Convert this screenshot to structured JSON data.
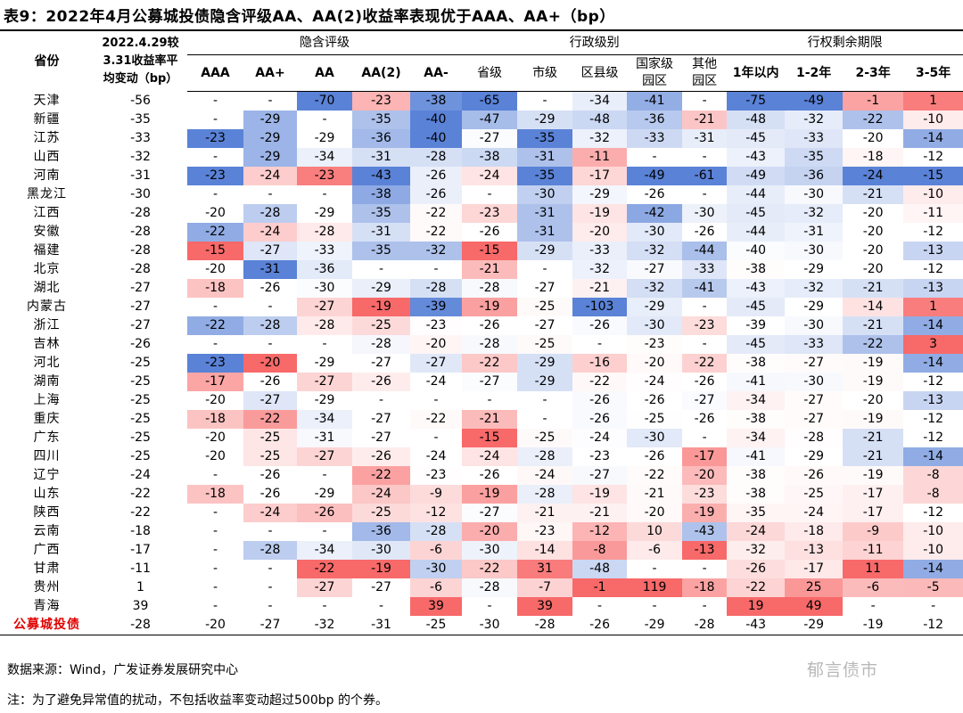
{
  "title": "表9：2022年4月公募城投债隐含评级AA、AA(2)收益率表现优于AAA、AA+（bp）",
  "header": {
    "province": "省份",
    "change": "2022.4.29较\n3.31收益率平\n均变动（bp）",
    "groups": [
      {
        "label": "隐含评级",
        "span": 5
      },
      {
        "label": "行政级别",
        "span": 5
      },
      {
        "label": "行权剩余期限",
        "span": 4
      }
    ],
    "columns": [
      "AAA",
      "AA+",
      "AA",
      "AA(2)",
      "AA-",
      "省级",
      "市级",
      "区县级",
      "国家级园区",
      "其他园区",
      "1年以内",
      "1-2年",
      "2-3年",
      "3-5年"
    ]
  },
  "rows": [
    {
      "name": "天津",
      "values": [
        -56,
        "-",
        "-",
        -70,
        -23,
        -38,
        -65,
        "-",
        -34,
        -41,
        "-",
        -75,
        -49,
        -1,
        1
      ]
    },
    {
      "name": "新疆",
      "values": [
        -35,
        "-",
        -29,
        "-",
        -35,
        -40,
        -47,
        -29,
        -48,
        -36,
        -21,
        -48,
        -32,
        -22,
        -10
      ]
    },
    {
      "name": "江苏",
      "values": [
        -33,
        -23,
        -29,
        -29,
        -36,
        -40,
        -27,
        -35,
        -32,
        -33,
        -31,
        -45,
        -33,
        -20,
        -14
      ]
    },
    {
      "name": "山西",
      "values": [
        -32,
        "-",
        -29,
        -34,
        -31,
        -28,
        -38,
        -31,
        -11,
        "-",
        "-",
        -43,
        -35,
        -18,
        -12
      ]
    },
    {
      "name": "河南",
      "values": [
        -31,
        -23,
        -24,
        -23,
        -43,
        -26,
        -24,
        -35,
        -17,
        -49,
        -61,
        -49,
        -36,
        -24,
        -15
      ]
    },
    {
      "name": "黑龙江",
      "values": [
        -30,
        "-",
        "-",
        "-",
        -38,
        -26,
        "-",
        -30,
        -29,
        -26,
        "-",
        -44,
        -30,
        -21,
        -10
      ]
    },
    {
      "name": "江西",
      "values": [
        -28,
        -20,
        -28,
        -29,
        -35,
        -22,
        -23,
        -31,
        -19,
        -42,
        -30,
        -45,
        -32,
        -20,
        -11
      ]
    },
    {
      "name": "安徽",
      "values": [
        -28,
        -22,
        -24,
        -28,
        -31,
        -22,
        -26,
        -31,
        -20,
        -30,
        -26,
        -44,
        -31,
        -20,
        -12
      ]
    },
    {
      "name": "福建",
      "values": [
        -28,
        -15,
        -27,
        -33,
        -35,
        -32,
        -15,
        -29,
        -33,
        -32,
        -44,
        -40,
        -30,
        -20,
        -13
      ]
    },
    {
      "name": "北京",
      "values": [
        -28,
        -20,
        -31,
        -36,
        "-",
        "-",
        -21,
        "-",
        -32,
        -27,
        -33,
        -38,
        -29,
        -20,
        -12
      ]
    },
    {
      "name": "湖北",
      "values": [
        -27,
        -18,
        -26,
        -30,
        -29,
        -28,
        -28,
        -27,
        -21,
        -32,
        -41,
        -43,
        -32,
        -21,
        -13
      ]
    },
    {
      "name": "内蒙古",
      "values": [
        -27,
        "-",
        "-",
        -27,
        -19,
        -39,
        -19,
        -25,
        -103,
        -29,
        "-",
        -45,
        -29,
        -14,
        1
      ]
    },
    {
      "name": "浙江",
      "values": [
        -27,
        -22,
        -28,
        -28,
        -25,
        -23,
        -26,
        -27,
        -26,
        -30,
        -23,
        -39,
        -30,
        -21,
        -14
      ]
    },
    {
      "name": "吉林",
      "values": [
        -26,
        "-",
        "-",
        "-",
        -28,
        -20,
        -28,
        -25,
        "-",
        -23,
        "-",
        -45,
        -33,
        -22,
        3
      ]
    },
    {
      "name": "河北",
      "values": [
        -25,
        -23,
        -20,
        -29,
        -27,
        -27,
        -22,
        -29,
        -16,
        -20,
        -22,
        -38,
        -27,
        -19,
        -14
      ]
    },
    {
      "name": "湖南",
      "values": [
        -25,
        -17,
        -26,
        -27,
        -26,
        -24,
        -27,
        -29,
        -22,
        -24,
        -26,
        -41,
        -30,
        -19,
        -12
      ]
    },
    {
      "name": "上海",
      "values": [
        -25,
        -20,
        -27,
        -29,
        "-",
        "-",
        "-",
        "-",
        -26,
        -26,
        -27,
        -34,
        -27,
        -20,
        -13
      ]
    },
    {
      "name": "重庆",
      "values": [
        -25,
        -18,
        -22,
        -34,
        -27,
        -22,
        -21,
        "-",
        -26,
        -25,
        -26,
        -38,
        -27,
        -19,
        -12
      ]
    },
    {
      "name": "广东",
      "values": [
        -25,
        -20,
        -25,
        -31,
        -27,
        "-",
        -15,
        -25,
        -24,
        -30,
        "-",
        -34,
        -28,
        -21,
        -12
      ]
    },
    {
      "name": "四川",
      "values": [
        -25,
        -20,
        -25,
        -27,
        -26,
        -24,
        -24,
        -28,
        -23,
        -26,
        -17,
        -41,
        -29,
        -21,
        -14
      ]
    },
    {
      "name": "辽宁",
      "values": [
        -24,
        "-",
        -26,
        "-",
        -22,
        -23,
        -26,
        -24,
        -27,
        -22,
        -20,
        -38,
        -26,
        -19,
        -8
      ]
    },
    {
      "name": "山东",
      "values": [
        -22,
        -18,
        -26,
        -29,
        -24,
        -9,
        -19,
        -28,
        -19,
        -21,
        -23,
        -38,
        -25,
        -17,
        -8
      ]
    },
    {
      "name": "陕西",
      "values": [
        -22,
        "-",
        -24,
        -26,
        -25,
        -12,
        -27,
        -21,
        -21,
        -20,
        -19,
        -35,
        -24,
        -17,
        -12
      ]
    },
    {
      "name": "云南",
      "values": [
        -18,
        "-",
        "-",
        "-",
        -36,
        -28,
        -20,
        -23,
        -12,
        10,
        -43,
        -24,
        -18,
        -9,
        -10
      ]
    },
    {
      "name": "广西",
      "values": [
        -17,
        "-",
        -28,
        -34,
        -30,
        -6,
        -30,
        -14,
        -8,
        -6,
        -13,
        -32,
        -13,
        -11,
        -10
      ]
    },
    {
      "name": "甘肃",
      "values": [
        -11,
        "-",
        "-",
        -22,
        -19,
        -30,
        -22,
        31,
        -48,
        "-",
        "-",
        -26,
        -17,
        11,
        -14
      ]
    },
    {
      "name": "贵州",
      "values": [
        1,
        "-",
        "-",
        -27,
        -27,
        -6,
        -28,
        -7,
        -1,
        119,
        -18,
        -22,
        25,
        -6,
        -5
      ]
    },
    {
      "name": "青海",
      "values": [
        39,
        "-",
        "-",
        "-",
        "-",
        39,
        "-",
        39,
        "-",
        "-",
        "-",
        19,
        49,
        "-",
        "-"
      ]
    }
  ],
  "summary": {
    "name": "公募城投债",
    "values": [
      -28,
      -20,
      -27,
      -32,
      -31,
      -25,
      -30,
      -28,
      -26,
      -29,
      -28,
      -43,
      -29,
      -19,
      -12
    ]
  },
  "source": "数据来源：Wind，广发证券发展研究中心",
  "note": "注：为了避免异常值的扰动，不包括收益率变动超过500bp 的个券。",
  "watermark": "郁言债市"
}
